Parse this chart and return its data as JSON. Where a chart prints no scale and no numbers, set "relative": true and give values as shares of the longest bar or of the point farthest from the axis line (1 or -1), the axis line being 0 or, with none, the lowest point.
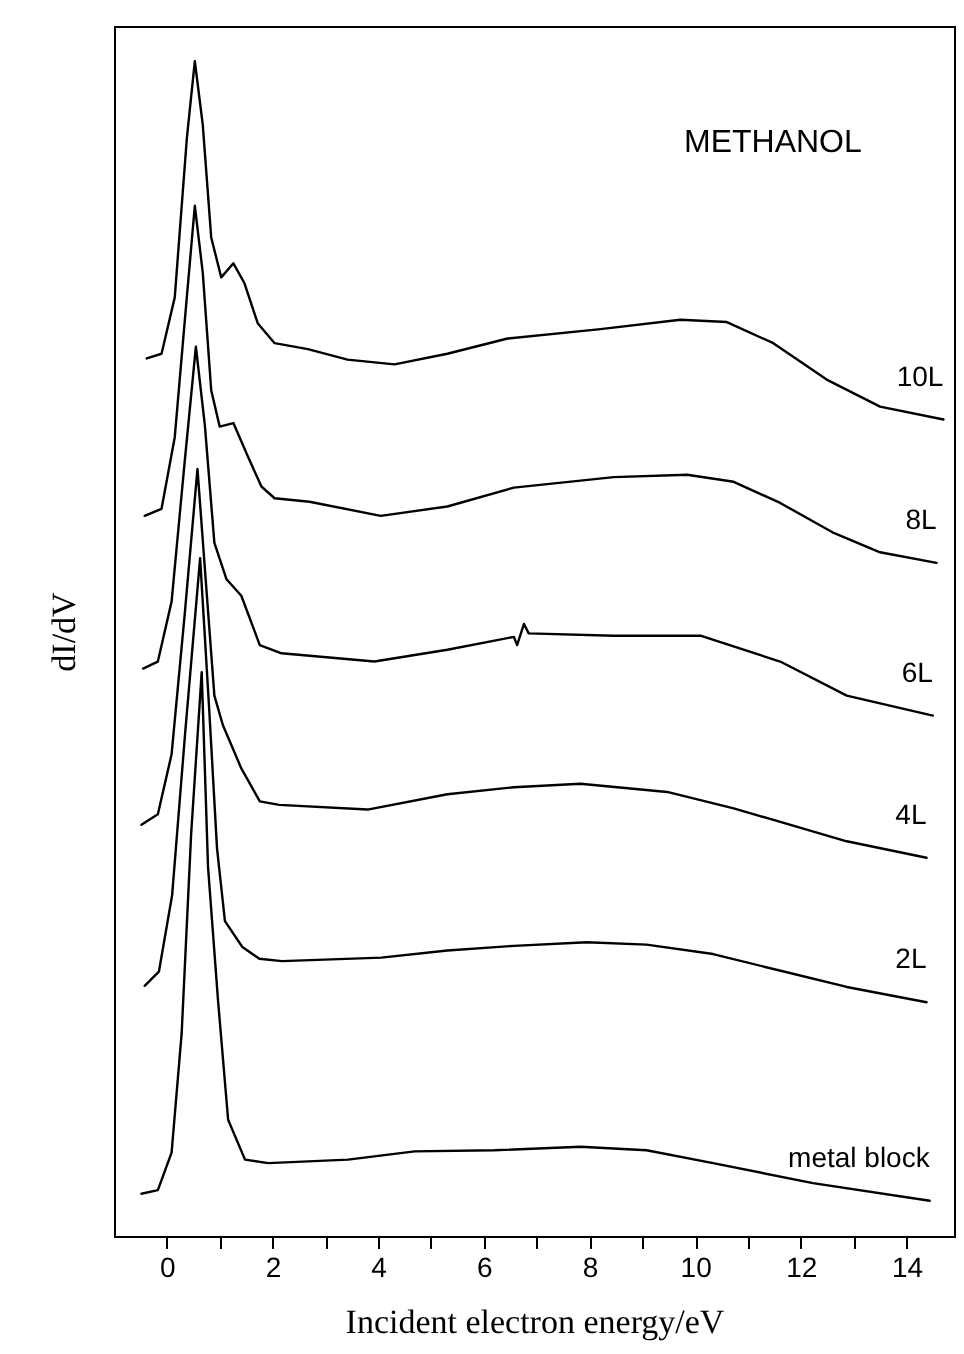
{
  "chart_data": {
    "type": "line",
    "relative": true,
    "xlabel": "Incident electron energy/eV",
    "ylabel": "dI/dV",
    "annotations": [
      "METHANOL"
    ],
    "xlim": [
      -1,
      14.9
    ],
    "xticks": [
      0,
      {
        "value": 1,
        "label": null
      },
      2,
      {
        "value": 3,
        "label": null
      },
      4,
      {
        "value": 5,
        "label": null
      },
      6,
      {
        "value": 7,
        "label": null
      },
      8,
      {
        "value": 9,
        "label": null
      },
      10,
      {
        "value": 11,
        "label": null
      },
      12,
      {
        "value": 13,
        "label": null
      },
      14
    ],
    "series": [
      {
        "name": "10L",
        "color": "#000000",
        "x": [
          -0.38,
          -0.1,
          0.15,
          0.38,
          0.53,
          0.68,
          0.84,
          1.03,
          1.26,
          1.47,
          1.72,
          2.04,
          2.67,
          3.42,
          4.31,
          5.31,
          6.45,
          8.21,
          9.72,
          10.6,
          11.48,
          12.49,
          13.5,
          14.7
        ],
        "values": [
          0.747,
          0.751,
          0.799,
          0.935,
          1.0,
          0.946,
          0.85,
          0.816,
          0.828,
          0.811,
          0.777,
          0.76,
          0.755,
          0.746,
          0.742,
          0.751,
          0.764,
          0.772,
          0.78,
          0.778,
          0.76,
          0.729,
          0.706,
          0.695
        ]
      },
      {
        "name": "8L",
        "color": "#000000",
        "x": [
          -0.42,
          -0.1,
          0.15,
          0.38,
          0.53,
          0.68,
          0.84,
          1.0,
          1.26,
          1.53,
          1.79,
          2.04,
          2.7,
          4.05,
          5.31,
          6.57,
          8.46,
          9.85,
          10.73,
          11.61,
          12.6,
          13.5,
          14.57
        ],
        "values": [
          0.613,
          0.619,
          0.68,
          0.8,
          0.877,
          0.82,
          0.72,
          0.689,
          0.692,
          0.664,
          0.638,
          0.628,
          0.625,
          0.613,
          0.621,
          0.637,
          0.646,
          0.648,
          0.642,
          0.624,
          0.599,
          0.582,
          0.573
        ]
      },
      {
        "name": "6L",
        "color": "#000000",
        "x": [
          -0.45,
          -0.17,
          0.09,
          0.34,
          0.55,
          0.72,
          0.9,
          1.13,
          1.41,
          1.76,
          2.17,
          3.93,
          5.31,
          6.57,
          6.63,
          6.76,
          6.85,
          8.46,
          10.1,
          11.61,
          12.87,
          14.5
        ],
        "values": [
          0.483,
          0.489,
          0.54,
          0.66,
          0.757,
          0.69,
          0.59,
          0.559,
          0.545,
          0.503,
          0.496,
          0.489,
          0.499,
          0.51,
          0.503,
          0.521,
          0.513,
          0.511,
          0.511,
          0.489,
          0.46,
          0.443
        ]
      },
      {
        "name": "4L",
        "color": "#000000",
        "x": [
          -0.48,
          -0.17,
          0.09,
          0.34,
          0.58,
          0.75,
          0.9,
          1.06,
          1.41,
          1.76,
          2.13,
          3.8,
          5.31,
          6.57,
          7.83,
          9.47,
          10.73,
          12.87,
          14.38
        ],
        "values": [
          0.35,
          0.359,
          0.41,
          0.53,
          0.653,
          0.55,
          0.46,
          0.435,
          0.398,
          0.37,
          0.367,
          0.363,
          0.376,
          0.382,
          0.385,
          0.378,
          0.364,
          0.336,
          0.322
        ]
      },
      {
        "name": "2L",
        "color": "#000000",
        "x": [
          -0.42,
          -0.15,
          0.1,
          0.35,
          0.63,
          0.8,
          0.95,
          1.1,
          1.43,
          1.75,
          2.18,
          4.06,
          5.31,
          6.57,
          7.95,
          9.08,
          10.34,
          11.6,
          12.87,
          14.38
        ],
        "values": [
          0.213,
          0.225,
          0.29,
          0.43,
          0.577,
          0.45,
          0.33,
          0.268,
          0.246,
          0.236,
          0.234,
          0.237,
          0.243,
          0.247,
          0.25,
          0.248,
          0.24,
          0.226,
          0.212,
          0.199
        ]
      },
      {
        "name": "metal block",
        "color": "#000000",
        "x": [
          -0.48,
          -0.17,
          0.09,
          0.28,
          0.46,
          0.66,
          0.78,
          0.97,
          1.16,
          1.48,
          1.92,
          3.43,
          4.69,
          6.2,
          7.83,
          9.08,
          10.34,
          12.23,
          14.44
        ],
        "values": [
          0.036,
          0.039,
          0.071,
          0.172,
          0.342,
          0.48,
          0.314,
          0.2,
          0.099,
          0.065,
          0.062,
          0.065,
          0.072,
          0.073,
          0.076,
          0.073,
          0.062,
          0.045,
          0.03
        ]
      }
    ]
  }
}
